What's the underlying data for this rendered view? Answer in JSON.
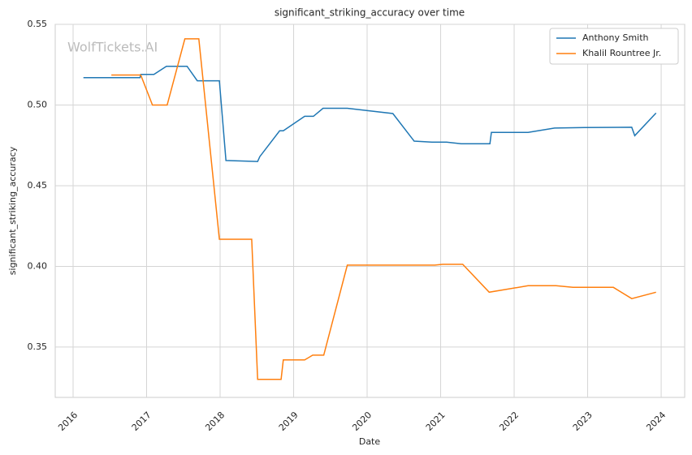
{
  "chart_data": {
    "type": "line",
    "title": "significant_striking_accuracy over time",
    "x_label": "Date",
    "y_label": "significant_striking_accuracy",
    "watermark": "WolfTickets.AI",
    "xlim": [
      2015.757,
      2024.32
    ],
    "xticks": [
      2016,
      2017,
      2018,
      2019,
      2020,
      2021,
      2022,
      2023,
      2024
    ],
    "ylim": [
      0.3188,
      0.55
    ],
    "yticks": [
      0.35,
      {
        "value": 0.4,
        "label": "0.40"
      },
      0.45,
      {
        "value": 0.5,
        "label": "0.50"
      },
      0.55
    ],
    "grid": true,
    "legend": "upper right",
    "series": [
      {
        "name": "Anthony Smith",
        "color": "#1f77b4",
        "x": [
          2016.14,
          2016.91,
          2016.92,
          2017.1,
          2017.27,
          2017.55,
          2017.69,
          2017.99,
          2018.08,
          2018.51,
          2018.54,
          2018.81,
          2018.86,
          2019.15,
          2019.27,
          2019.4,
          2019.73,
          2020.35,
          2020.64,
          2020.88,
          2021.08,
          2021.28,
          2021.67,
          2021.69,
          2022.19,
          2022.55,
          2022.96,
          2023.6,
          2023.64,
          2023.93
        ],
        "values": [
          0.517,
          0.517,
          0.519,
          0.519,
          0.524,
          0.524,
          0.515,
          0.515,
          0.4656,
          0.465,
          0.468,
          0.484,
          0.484,
          0.493,
          0.493,
          0.498,
          0.498,
          0.4947,
          0.4776,
          0.477,
          0.477,
          0.476,
          0.476,
          0.483,
          0.483,
          0.4857,
          0.486,
          0.4862,
          0.481,
          0.495
        ]
      },
      {
        "name": "Khalil Rountree Jr.",
        "color": "#ff7f0e",
        "x": [
          2016.52,
          2016.92,
          2017.08,
          2017.28,
          2017.52,
          2017.71,
          2017.99,
          2018.43,
          2018.51,
          2018.83,
          2018.86,
          2019.15,
          2019.26,
          2019.41,
          2019.73,
          2020.92,
          2021.03,
          2021.3,
          2021.66,
          2022.19,
          2022.57,
          2022.8,
          2023.35,
          2023.6,
          2023.93
        ],
        "values": [
          0.5186,
          0.5186,
          0.5,
          0.5,
          0.541,
          0.541,
          0.4168,
          0.4168,
          0.33,
          0.33,
          0.342,
          0.342,
          0.345,
          0.345,
          0.4008,
          0.4008,
          0.4013,
          0.4013,
          0.384,
          0.388,
          0.388,
          0.387,
          0.387,
          0.38,
          0.384
        ]
      }
    ]
  }
}
